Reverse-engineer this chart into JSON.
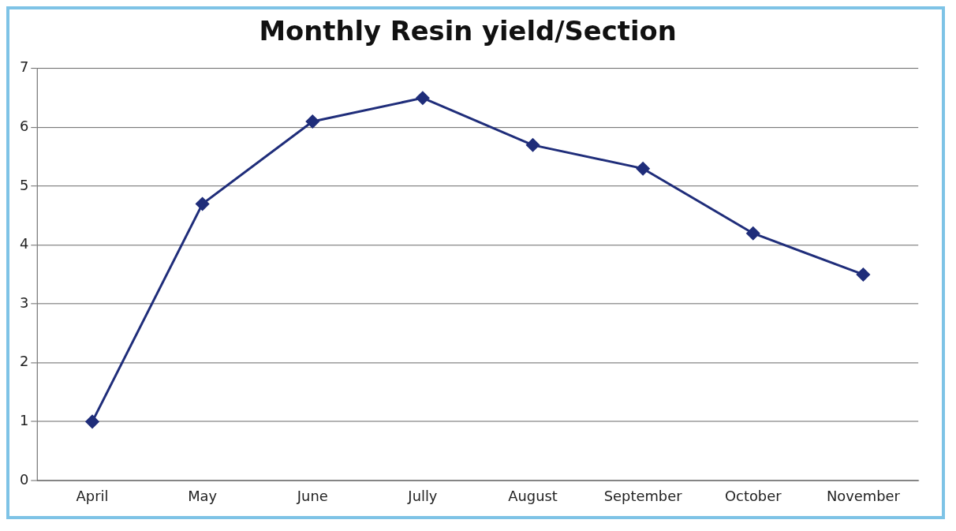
{
  "chart_data": {
    "type": "line",
    "title": "Monthly Resin yield/Section",
    "categories": [
      "April",
      "May",
      "June",
      "Jully",
      "August",
      "September",
      "October",
      "November"
    ],
    "series": [
      {
        "color": "#1f2d7a",
        "values": [
          1.0,
          4.7,
          6.1,
          6.5,
          5.7,
          5.3,
          4.2,
          3.5
        ]
      }
    ],
    "ylim": [
      0,
      7
    ],
    "yticks": [
      0,
      1,
      2,
      3,
      4,
      5,
      6,
      7
    ],
    "grid": "y",
    "marker": "diamond",
    "legend": false
  }
}
